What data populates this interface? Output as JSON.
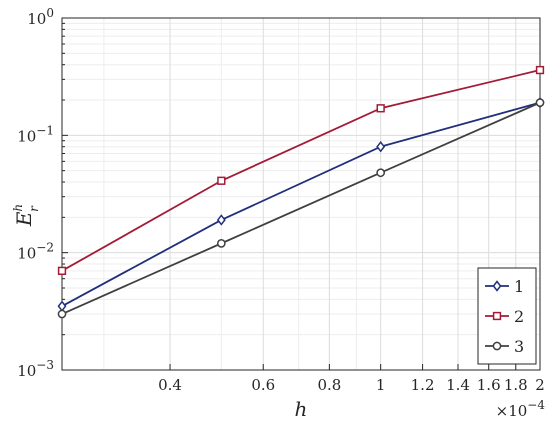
{
  "chart_data": {
    "type": "line",
    "x_scale": "log",
    "y_scale": "log",
    "x": [
      0.25,
      0.5,
      1,
      2
    ],
    "x_multiplier_label": "×10",
    "x_multiplier_exp": "−4",
    "xlim": [
      0.25,
      2
    ],
    "ylim": [
      0.001,
      1
    ],
    "xlabel": "h",
    "ylabel_base": "E",
    "ylabel_sup": "h",
    "ylabel_sub": "r",
    "x_ticks": [
      0.4,
      0.6,
      0.8,
      1,
      1.2,
      1.4,
      1.6,
      1.8,
      2
    ],
    "x_tick_labels": [
      "0.4",
      "0.6",
      "0.8",
      "1",
      "1.2",
      "1.4",
      "1.6",
      "1.8",
      "2"
    ],
    "y_ticks": [
      0.001,
      0.01,
      0.1,
      1
    ],
    "y_tick_base": "10",
    "y_tick_exps": [
      "−3",
      "−2",
      "−1",
      "0"
    ],
    "grid": true,
    "legend_position": "bottom-right",
    "series": [
      {
        "name": "1",
        "color": "#1f2f7a",
        "marker": "diamond",
        "values": [
          0.0035,
          0.019,
          0.08,
          0.19
        ]
      },
      {
        "name": "2",
        "color": "#a31c37",
        "marker": "square",
        "values": [
          0.007,
          0.041,
          0.17,
          0.36
        ]
      },
      {
        "name": "3",
        "color": "#404040",
        "marker": "circle",
        "values": [
          0.003,
          0.012,
          0.048,
          0.19
        ]
      }
    ]
  }
}
